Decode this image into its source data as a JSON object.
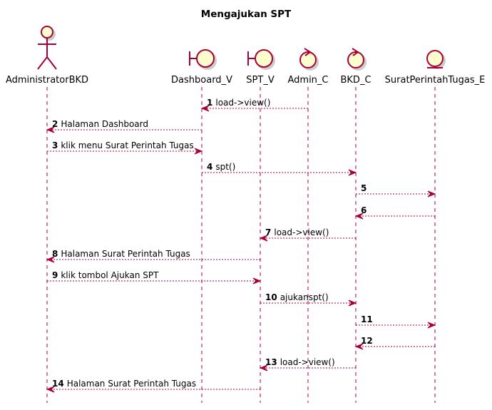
{
  "title": "Mengajukan SPT",
  "participants": [
    {
      "name": "AdministratorBKD",
      "type": "actor"
    },
    {
      "name": "Dashboard_V",
      "type": "boundary"
    },
    {
      "name": "SPT_V",
      "type": "boundary"
    },
    {
      "name": "Admin_C",
      "type": "control"
    },
    {
      "name": "BKD_C",
      "type": "control"
    },
    {
      "name": "SuratPerintahTugas_E",
      "type": "entity"
    }
  ],
  "messages": [
    {
      "num": "1",
      "text": "load->view()",
      "from": 3,
      "to": 1
    },
    {
      "num": "2",
      "text": "Halaman Dashboard",
      "from": 1,
      "to": 0
    },
    {
      "num": "3",
      "text": "klik menu Surat Perintah Tugas",
      "from": 0,
      "to": 1
    },
    {
      "num": "4",
      "text": "spt()",
      "from": 1,
      "to": 4
    },
    {
      "num": "5",
      "text": "",
      "from": 4,
      "to": 5
    },
    {
      "num": "6",
      "text": "",
      "from": 5,
      "to": 4
    },
    {
      "num": "7",
      "text": "load->view()",
      "from": 4,
      "to": 2
    },
    {
      "num": "8",
      "text": "Halaman Surat Perintah Tugas",
      "from": 2,
      "to": 0
    },
    {
      "num": "9",
      "text": "klik tombol Ajukan SPT",
      "from": 0,
      "to": 2
    },
    {
      "num": "10",
      "text": "ajukanspt()",
      "from": 2,
      "to": 4
    },
    {
      "num": "11",
      "text": "",
      "from": 4,
      "to": 5
    },
    {
      "num": "12",
      "text": "",
      "from": 5,
      "to": 4
    },
    {
      "num": "13",
      "text": "load->view()",
      "from": 4,
      "to": 2
    },
    {
      "num": "14",
      "text": "Halaman Surat Perintah Tugas",
      "from": 2,
      "to": 0
    }
  ]
}
